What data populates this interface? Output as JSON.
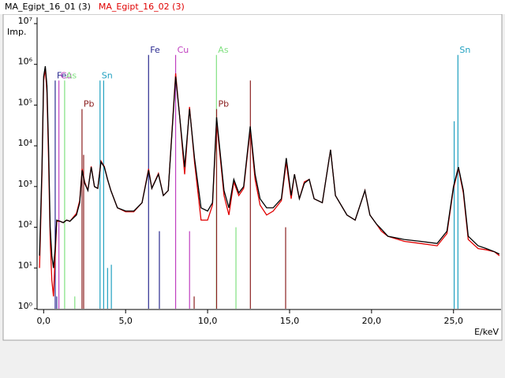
{
  "chart_data": {
    "type": "line",
    "ylabel": "Imp.",
    "xlabel": "E/keV",
    "log_y": true,
    "xlim": [
      -0.4,
      27.9
    ],
    "ylim": [
      1,
      10000000
    ],
    "xticks": [
      {
        "value": 0,
        "label": "0,0"
      },
      {
        "value": 5,
        "label": "5,0"
      },
      {
        "value": 10,
        "label": "10,0"
      },
      {
        "value": 15,
        "label": "15,0"
      },
      {
        "value": 20,
        "label": "20,0"
      },
      {
        "value": 25,
        "label": "25,0"
      }
    ],
    "yticks": [
      {
        "value": 1,
        "label": "10⁰"
      },
      {
        "value": 10,
        "label": "10¹"
      },
      {
        "value": 100,
        "label": "10²"
      },
      {
        "value": 1000,
        "label": "10³"
      },
      {
        "value": 10000,
        "label": "10⁴"
      },
      {
        "value": 100000,
        "label": "10⁵"
      },
      {
        "value": 1000000,
        "label": "10⁶"
      },
      {
        "value": 10000000,
        "label": "10⁷"
      }
    ],
    "x": [
      -0.25,
      -0.1,
      0.0,
      0.1,
      0.2,
      0.3,
      0.4,
      0.5,
      0.6,
      0.7,
      0.8,
      1.0,
      1.2,
      1.4,
      1.6,
      2.0,
      2.2,
      2.35,
      2.5,
      2.7,
      2.9,
      3.1,
      3.3,
      3.5,
      3.7,
      3.9,
      4.1,
      4.5,
      5.0,
      5.5,
      6.0,
      6.4,
      6.6,
      7.0,
      7.3,
      7.6,
      8.05,
      8.3,
      8.6,
      8.9,
      9.2,
      9.6,
      10.0,
      10.3,
      10.55,
      10.8,
      11.0,
      11.3,
      11.6,
      11.9,
      12.2,
      12.6,
      12.9,
      13.2,
      13.6,
      14.0,
      14.5,
      14.8,
      15.1,
      15.3,
      15.6,
      15.9,
      16.2,
      16.5,
      17.0,
      17.5,
      17.8,
      18.5,
      19.0,
      19.6,
      19.9,
      20.3,
      20.6,
      21.0,
      22.0,
      23.0,
      24.0,
      24.6,
      25.0,
      25.3,
      25.6,
      25.9,
      26.5,
      27.0,
      27.5,
      27.8
    ],
    "series": [
      {
        "name": "MA_Egipt_16_01 (3)",
        "color": "#000000",
        "values": [
          20,
          3000,
          500000,
          900000,
          300000,
          10000,
          100,
          20,
          10,
          30,
          150,
          140,
          130,
          150,
          140,
          200,
          400,
          2500,
          1200,
          800,
          3000,
          1000,
          900,
          4000,
          3000,
          1500,
          800,
          300,
          250,
          250,
          400,
          2500,
          900,
          2000,
          600,
          800,
          500000,
          50000,
          3000,
          80000,
          5000,
          300,
          250,
          400,
          50000,
          5000,
          800,
          300,
          1500,
          700,
          1000,
          30000,
          2000,
          500,
          300,
          300,
          500,
          5000,
          600,
          2000,
          500,
          1200,
          1500,
          500,
          400,
          8000,
          600,
          200,
          150,
          800,
          200,
          120,
          90,
          60,
          50,
          45,
          40,
          80,
          1000,
          3000,
          800,
          60,
          35,
          30,
          25,
          22
        ]
      },
      {
        "name": "MA_Egipt_16_02 (3)",
        "color": "#e00000",
        "values": [
          10,
          2000,
          400000,
          800000,
          200000,
          5000,
          50,
          5,
          2,
          20,
          140,
          140,
          130,
          150,
          140,
          220,
          450,
          2700,
          1300,
          800,
          3100,
          1000,
          900,
          4200,
          3100,
          1500,
          800,
          300,
          240,
          240,
          400,
          2700,
          900,
          2100,
          600,
          800,
          600000,
          50000,
          2000,
          90000,
          4000,
          150,
          150,
          350,
          40000,
          4000,
          600,
          200,
          1300,
          600,
          900,
          25000,
          1500,
          350,
          200,
          250,
          450,
          4000,
          500,
          2000,
          500,
          1300,
          1500,
          500,
          400,
          8000,
          600,
          200,
          150,
          800,
          200,
          120,
          80,
          60,
          45,
          40,
          35,
          70,
          900,
          2800,
          700,
          50,
          30,
          28,
          25,
          20
        ]
      }
    ],
    "element_lines": [
      {
        "label": "Fe",
        "x": 6.4,
        "y": 1700000,
        "color": "#2a2a90"
      },
      {
        "label": "Cu",
        "x": 8.05,
        "y": 1700000,
        "color": "#c040c0"
      },
      {
        "label": "As",
        "x": 10.54,
        "y": 1700000,
        "color": "#80e080"
      },
      {
        "label": "Pb",
        "x": 10.55,
        "y": 80000,
        "color": "#8b2020"
      },
      {
        "label": "Sn",
        "x": 25.27,
        "y": 1700000,
        "color": "#20a0c0"
      },
      {
        "label": "Fe",
        "x": 0.705,
        "y": 400000,
        "color": "#2a2a90"
      },
      {
        "label": "Cu",
        "x": 0.93,
        "y": 400000,
        "color": "#c040c0"
      },
      {
        "label": "As",
        "x": 1.28,
        "y": 400000,
        "color": "#80e080"
      },
      {
        "label": "Pb",
        "x": 2.34,
        "y": 80000,
        "color": "#8b2020"
      },
      {
        "label": "Sn",
        "x": 3.44,
        "y": 400000,
        "color": "#20a0c0"
      }
    ],
    "minor_lines": [
      {
        "x": 7.06,
        "y": 80,
        "color": "#2a2a90"
      },
      {
        "x": 8.9,
        "y": 80,
        "color": "#c040c0"
      },
      {
        "x": 11.73,
        "y": 100,
        "color": "#80e080"
      },
      {
        "x": 12.61,
        "y": 400000,
        "color": "#8b2020"
      },
      {
        "x": 14.76,
        "y": 100,
        "color": "#8b2020"
      },
      {
        "x": 2.44,
        "y": 6000,
        "color": "#8b2020"
      },
      {
        "x": 9.18,
        "y": 2,
        "color": "#8b2020"
      },
      {
        "x": 3.66,
        "y": 400000,
        "color": "#20a0c0"
      },
      {
        "x": 3.9,
        "y": 10,
        "color": "#20a0c0"
      },
      {
        "x": 4.13,
        "y": 12,
        "color": "#20a0c0"
      },
      {
        "x": 25.04,
        "y": 40000,
        "color": "#20a0c0"
      },
      {
        "x": 1.9,
        "y": 2,
        "color": "#80e080"
      },
      {
        "x": 0.8,
        "y": 2,
        "color": "#2a2a90"
      }
    ]
  }
}
